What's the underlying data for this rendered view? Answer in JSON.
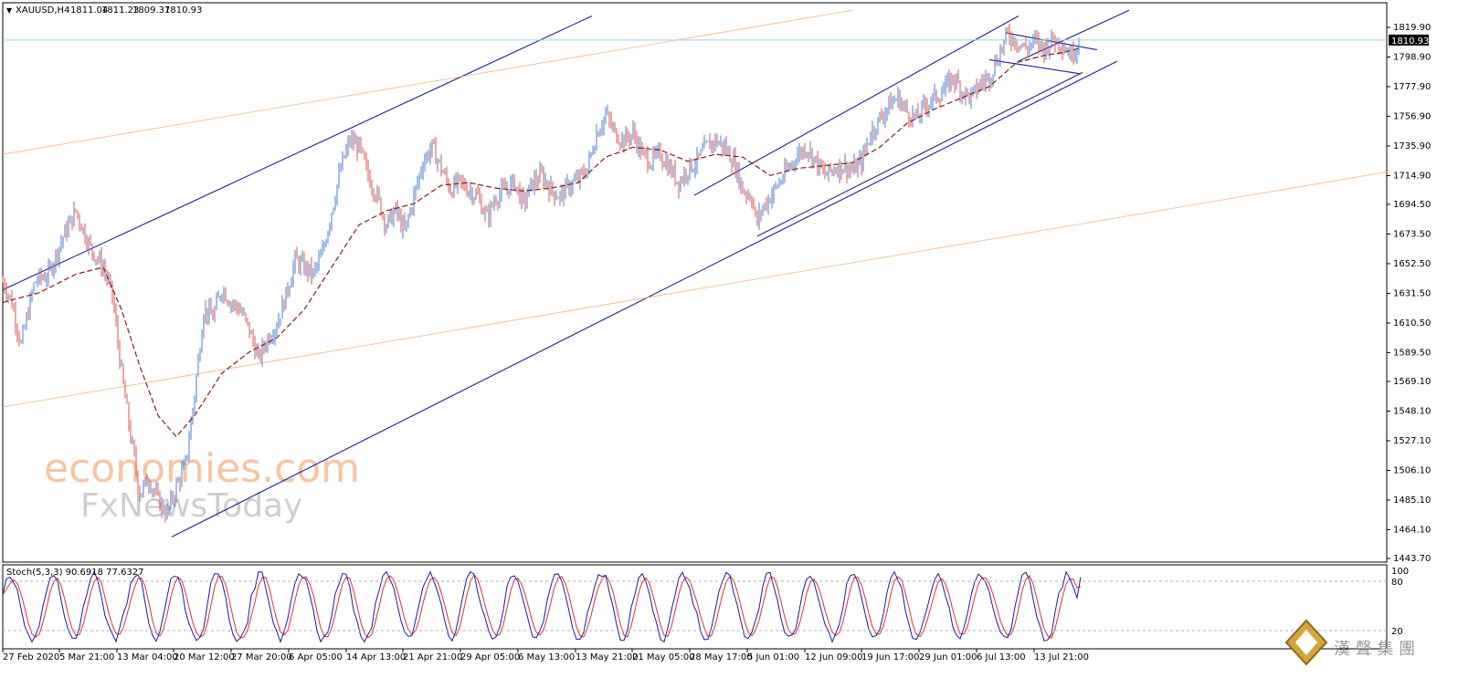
{
  "header": {
    "symbol": "XAUUSD,H4",
    "open": "1811.04",
    "high": "1811.23",
    "low": "1809.37",
    "close": "1810.93"
  },
  "price_tag": "1810.93",
  "indicator": {
    "label": "Stoch(5,3,3) 90.6918 77.6327",
    "levels": [
      "100",
      "80",
      "20"
    ]
  },
  "watermark": {
    "line1": "economies.com",
    "line2": "FxNewsToday",
    "logo_text": "漢 聲 集 團"
  },
  "chart_data": [
    {
      "type": "candlestick",
      "title": "XAUUSD,H4",
      "xlabel": "",
      "ylabel": "",
      "x_ticks": [
        "27 Feb 2020",
        "5 Mar 21:00",
        "13 Mar 04:00",
        "20 Mar 12:00",
        "27 Mar 20:00",
        "6 Apr 05:00",
        "14 Apr 13:00",
        "21 Apr 21:00",
        "29 Apr 05:00",
        "6 May 13:00",
        "13 May 21:00",
        "21 May 05:00",
        "28 May 17:00",
        "5 Jun 01:00",
        "12 Jun 09:00",
        "19 Jun 17:00",
        "29 Jun 01:00",
        "6 Jul 13:00",
        "13 Jul 21:00"
      ],
      "y_ticks": [
        "1819.90",
        "1798.90",
        "1777.90",
        "1756.90",
        "1735.90",
        "1714.90",
        "1694.50",
        "1673.50",
        "1652.50",
        "1631.50",
        "1610.50",
        "1589.50",
        "1569.10",
        "1548.10",
        "1527.10",
        "1506.10",
        "1485.10",
        "1464.10",
        "1443.70"
      ],
      "ylim": [
        1442,
        1829
      ],
      "current_price": 1810.93,
      "grid": false,
      "close_path": [
        [
          0,
          1640
        ],
        [
          10,
          1625
        ],
        [
          20,
          1595
        ],
        [
          35,
          1640
        ],
        [
          50,
          1645
        ],
        [
          65,
          1670
        ],
        [
          80,
          1690
        ],
        [
          95,
          1665
        ],
        [
          110,
          1650
        ],
        [
          120,
          1630
        ],
        [
          130,
          1575
        ],
        [
          140,
          1530
        ],
        [
          150,
          1490
        ],
        [
          160,
          1500
        ],
        [
          170,
          1485
        ],
        [
          180,
          1475
        ],
        [
          190,
          1495
        ],
        [
          200,
          1510
        ],
        [
          210,
          1560
        ],
        [
          220,
          1620
        ],
        [
          230,
          1615
        ],
        [
          240,
          1635
        ],
        [
          250,
          1625
        ],
        [
          260,
          1620
        ],
        [
          270,
          1605
        ],
        [
          280,
          1585
        ],
        [
          290,
          1600
        ],
        [
          300,
          1610
        ],
        [
          310,
          1630
        ],
        [
          320,
          1655
        ],
        [
          330,
          1650
        ],
        [
          340,
          1645
        ],
        [
          350,
          1660
        ],
        [
          360,
          1690
        ],
        [
          370,
          1720
        ],
        [
          380,
          1740
        ],
        [
          390,
          1735
        ],
        [
          400,
          1715
        ],
        [
          410,
          1700
        ],
        [
          420,
          1680
        ],
        [
          430,
          1690
        ],
        [
          440,
          1675
        ],
        [
          450,
          1700
        ],
        [
          460,
          1725
        ],
        [
          470,
          1735
        ],
        [
          480,
          1720
        ],
        [
          490,
          1705
        ],
        [
          500,
          1710
        ],
        [
          510,
          1705
        ],
        [
          520,
          1700
        ],
        [
          530,
          1685
        ],
        [
          540,
          1700
        ],
        [
          550,
          1705
        ],
        [
          560,
          1710
        ],
        [
          570,
          1695
        ],
        [
          580,
          1710
        ],
        [
          590,
          1715
        ],
        [
          600,
          1705
        ],
        [
          610,
          1700
        ],
        [
          620,
          1708
        ],
        [
          630,
          1712
        ],
        [
          640,
          1720
        ],
        [
          650,
          1745
        ],
        [
          660,
          1758
        ],
        [
          670,
          1745
        ],
        [
          680,
          1740
        ],
        [
          690,
          1745
        ],
        [
          700,
          1730
        ],
        [
          710,
          1725
        ],
        [
          720,
          1730
        ],
        [
          730,
          1720
        ],
        [
          740,
          1710
        ],
        [
          750,
          1720
        ],
        [
          760,
          1725
        ],
        [
          770,
          1735
        ],
        [
          780,
          1740
        ],
        [
          790,
          1735
        ],
        [
          800,
          1725
        ],
        [
          810,
          1705
        ],
        [
          820,
          1700
        ],
        [
          825,
          1680
        ],
        [
          830,
          1690
        ],
        [
          840,
          1700
        ],
        [
          850,
          1710
        ],
        [
          860,
          1720
        ],
        [
          870,
          1730
        ],
        [
          880,
          1735
        ],
        [
          890,
          1725
        ],
        [
          900,
          1715
        ],
        [
          910,
          1720
        ],
        [
          920,
          1722
        ],
        [
          930,
          1718
        ],
        [
          940,
          1725
        ],
        [
          950,
          1745
        ],
        [
          960,
          1755
        ],
        [
          970,
          1765
        ],
        [
          980,
          1770
        ],
        [
          990,
          1760
        ],
        [
          1000,
          1755
        ],
        [
          1010,
          1765
        ],
        [
          1020,
          1770
        ],
        [
          1030,
          1775
        ],
        [
          1040,
          1785
        ],
        [
          1050,
          1775
        ],
        [
          1060,
          1770
        ],
        [
          1070,
          1780
        ],
        [
          1080,
          1785
        ],
        [
          1090,
          1800
        ],
        [
          1100,
          1815
        ],
        [
          1110,
          1810
        ],
        [
          1120,
          1805
        ],
        [
          1130,
          1810
        ],
        [
          1140,
          1805
        ],
        [
          1150,
          1812
        ],
        [
          1160,
          1808
        ],
        [
          1170,
          1800
        ],
        [
          1178,
          1811
        ]
      ],
      "moving_average_path": [
        [
          0,
          1625
        ],
        [
          40,
          1632
        ],
        [
          80,
          1645
        ],
        [
          110,
          1650
        ],
        [
          130,
          1620
        ],
        [
          150,
          1580
        ],
        [
          170,
          1545
        ],
        [
          190,
          1530
        ],
        [
          210,
          1545
        ],
        [
          240,
          1575
        ],
        [
          270,
          1590
        ],
        [
          300,
          1600
        ],
        [
          330,
          1620
        ],
        [
          360,
          1650
        ],
        [
          390,
          1680
        ],
        [
          420,
          1690
        ],
        [
          450,
          1695
        ],
        [
          480,
          1708
        ],
        [
          510,
          1710
        ],
        [
          540,
          1706
        ],
        [
          570,
          1704
        ],
        [
          600,
          1706
        ],
        [
          630,
          1710
        ],
        [
          660,
          1728
        ],
        [
          690,
          1735
        ],
        [
          720,
          1733
        ],
        [
          750,
          1725
        ],
        [
          780,
          1730
        ],
        [
          810,
          1728
        ],
        [
          840,
          1715
        ],
        [
          870,
          1720
        ],
        [
          900,
          1722
        ],
        [
          930,
          1724
        ],
        [
          960,
          1735
        ],
        [
          990,
          1752
        ],
        [
          1020,
          1762
        ],
        [
          1050,
          1770
        ],
        [
          1080,
          1778
        ],
        [
          1110,
          1795
        ],
        [
          1140,
          1800
        ],
        [
          1160,
          1802
        ],
        [
          1178,
          1805
        ]
      ],
      "trendlines": [
        {
          "color": "#1f1f8f",
          "points": [
            [
              0,
              1634
            ],
            [
              645,
              1828
            ]
          ]
        },
        {
          "color": "#1f1f8f",
          "points": [
            [
              185,
              1459
            ],
            [
              1220,
              1796
            ]
          ]
        },
        {
          "color": "#1f1f8f",
          "points": [
            [
              757,
              1701
            ],
            [
              1112,
              1828
            ]
          ]
        },
        {
          "color": "#1f1f8f",
          "points": [
            [
              826,
              1672
            ],
            [
              1182,
              1788
            ]
          ]
        },
        {
          "color": "#1f1f8f",
          "points": [
            [
              1098,
              1816
            ],
            [
              1198,
              1804
            ]
          ]
        },
        {
          "color": "#1f1f8f",
          "points": [
            [
              1080,
              1797
            ],
            [
              1180,
              1787
            ]
          ]
        },
        {
          "color": "#1f1f8f",
          "points": [
            [
              1112,
              1796
            ],
            [
              1233,
              1832
            ]
          ]
        },
        {
          "color": "#f4b183",
          "points": [
            [
              0,
              1730
            ],
            [
              930,
              1832
            ]
          ]
        },
        {
          "color": "#f4b183",
          "points": [
            [
              0,
              1551
            ],
            [
              1520,
              1718
            ]
          ]
        }
      ]
    },
    {
      "type": "line",
      "title": "Stoch(5,3,3)",
      "values_main": [
        90.6918
      ],
      "values_signal": [
        77.6327
      ],
      "ylim": [
        0,
        100
      ],
      "levels": [
        80,
        20
      ]
    }
  ]
}
